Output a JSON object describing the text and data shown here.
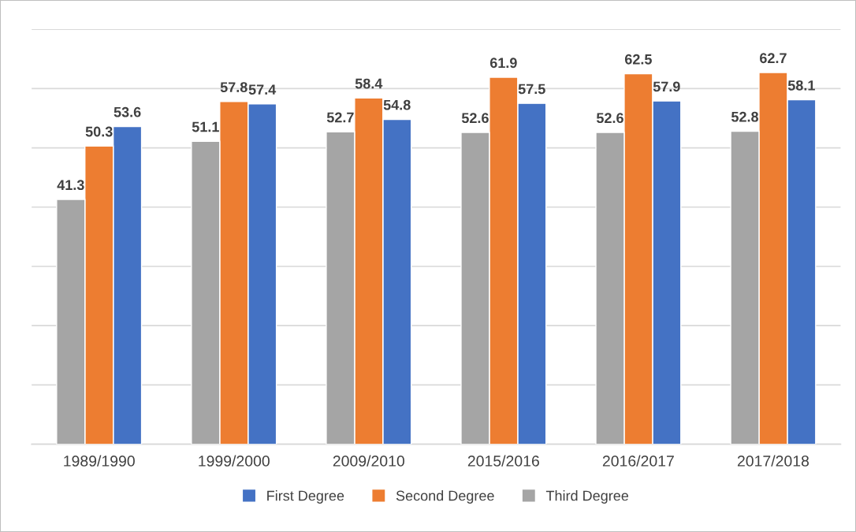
{
  "chart_data": {
    "type": "bar",
    "categories": [
      "1989/1990",
      "1999/2000",
      "2009/2010",
      "2015/2016",
      "2016/2017",
      "2017/2018"
    ],
    "series": [
      {
        "name": "First Degree",
        "color": "#4472c4",
        "values": [
          53.6,
          57.4,
          54.8,
          57.5,
          57.9,
          58.1
        ]
      },
      {
        "name": "Second Degree",
        "color": "#ed7d31",
        "values": [
          50.3,
          57.8,
          58.4,
          61.9,
          62.5,
          62.7
        ]
      },
      {
        "name": "Third Degree",
        "color": "#a5a5a5",
        "values": [
          41.3,
          51.1,
          52.7,
          52.6,
          52.6,
          52.8
        ]
      }
    ],
    "ylim": [
      0,
      70
    ],
    "yticks": [
      {
        "value": 0,
        "label": null
      },
      {
        "value": 10,
        "label": null
      },
      {
        "value": 20,
        "label": null
      },
      {
        "value": 30,
        "label": null
      },
      {
        "value": 40,
        "label": null
      },
      {
        "value": 50,
        "label": null
      },
      {
        "value": 60,
        "label": null
      },
      {
        "value": 70,
        "label": null
      }
    ],
    "grid": "y",
    "legend": "bottom",
    "data_labels": true
  }
}
